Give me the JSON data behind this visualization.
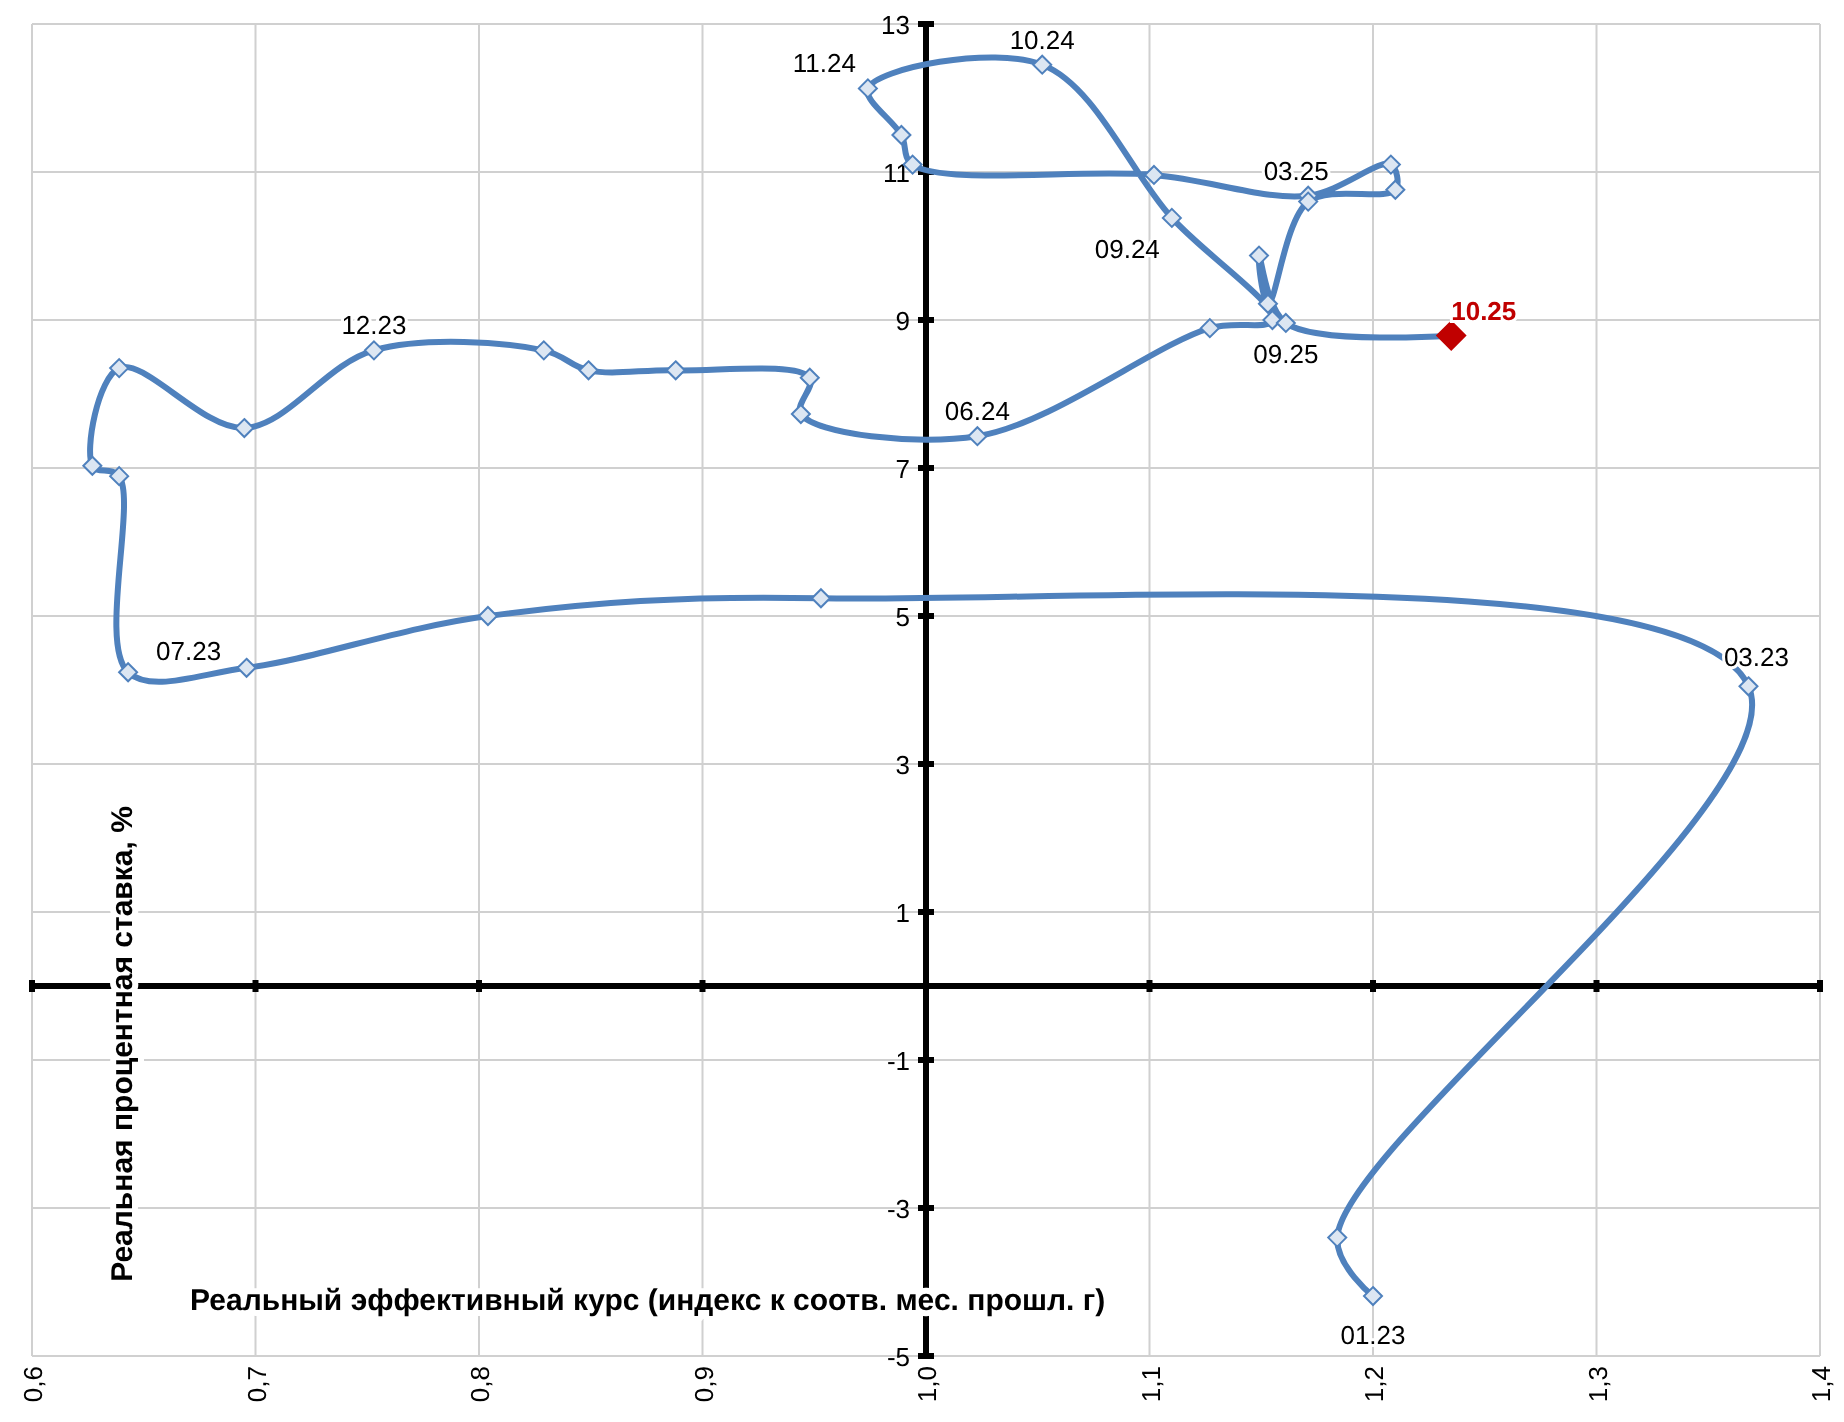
{
  "chart_data": {
    "type": "line",
    "xlabel": "Реальный эффективный курс (индекс к соотв. мес. прошл.  г)",
    "ylabel": "Реальная процентная ставка, %",
    "xlim": [
      0.6,
      1.4
    ],
    "xticks": [
      {
        "value": 0.6,
        "label": "0,6"
      },
      {
        "value": 0.7,
        "label": "0,7"
      },
      {
        "value": 0.8,
        "label": "0,8"
      },
      {
        "value": 0.9,
        "label": "0,9"
      },
      {
        "value": 1.0,
        "label": "1,0"
      },
      {
        "value": 1.1,
        "label": "1,1"
      },
      {
        "value": 1.2,
        "label": "1,2"
      },
      {
        "value": 1.3,
        "label": "1,3"
      },
      {
        "value": 1.4,
        "label": "1,4"
      }
    ],
    "ylim": [
      -5,
      13
    ],
    "yticks": [
      -5,
      -3,
      -1,
      1,
      3,
      5,
      7,
      9,
      11,
      13
    ],
    "grid": true,
    "marker": "diamond",
    "line_style": "solid",
    "series": [
      {
        "color": "#4f81bd",
        "x": [
          1.2,
          1.184,
          1.368,
          0.953,
          0.804,
          0.696,
          0.643,
          0.639,
          0.627,
          0.639,
          0.695,
          0.753,
          0.829,
          0.849,
          0.888,
          0.948,
          0.944,
          1.023,
          1.127,
          1.155,
          1.11,
          1.052,
          0.974,
          0.989,
          0.994,
          1.102,
          1.171,
          1.208,
          1.21,
          1.171,
          1.153,
          1.149,
          1.161,
          1.235
        ],
        "values": [
          -4.19,
          -3.4,
          4.05,
          5.24,
          5.0,
          4.3,
          4.24,
          6.89,
          7.03,
          8.35,
          7.54,
          8.59,
          8.59,
          8.32,
          8.32,
          8.22,
          7.73,
          7.43,
          8.89,
          9.0,
          10.38,
          12.45,
          12.13,
          11.5,
          11.1,
          10.96,
          10.68,
          11.1,
          10.76,
          10.6,
          9.22,
          9.87,
          8.96,
          8.79
        ],
        "colors": [
          "#4f81bd",
          "#4f81bd",
          "#4f81bd",
          "#4f81bd",
          "#4f81bd",
          "#4f81bd",
          "#4f81bd",
          "#4f81bd",
          "#4f81bd",
          "#4f81bd",
          "#4f81bd",
          "#4f81bd",
          "#4f81bd",
          "#4f81bd",
          "#4f81bd",
          "#4f81bd",
          "#4f81bd",
          "#4f81bd",
          "#4f81bd",
          "#4f81bd",
          "#4f81bd",
          "#4f81bd",
          "#4f81bd",
          "#4f81bd",
          "#4f81bd",
          "#4f81bd",
          "#4f81bd",
          "#4f81bd",
          "#4f81bd",
          "#4f81bd",
          "#4f81bd",
          "#4f81bd",
          "#4f81bd",
          "#c00000"
        ]
      }
    ],
    "annotations": [
      {
        "text": "01.23",
        "x": 1.2,
        "y": -4.19
      },
      {
        "text": "03.23",
        "x": 1.368,
        "y": 4.05
      },
      {
        "text": "07.23",
        "x": 0.643,
        "y": 4.24
      },
      {
        "text": "12.23",
        "x": 0.753,
        "y": 8.59
      },
      {
        "text": "06.24",
        "x": 1.023,
        "y": 7.43
      },
      {
        "text": "09.24",
        "x": 1.11,
        "y": 10.38
      },
      {
        "text": "10.24",
        "x": 1.052,
        "y": 12.45
      },
      {
        "text": "11.24",
        "x": 0.974,
        "y": 12.13
      },
      {
        "text": "03.25",
        "x": 1.171,
        "y": 10.68
      },
      {
        "text": "09.25",
        "x": 1.161,
        "y": 8.96
      },
      {
        "text": "10.25",
        "x": 1.235,
        "y": 8.79
      }
    ]
  }
}
